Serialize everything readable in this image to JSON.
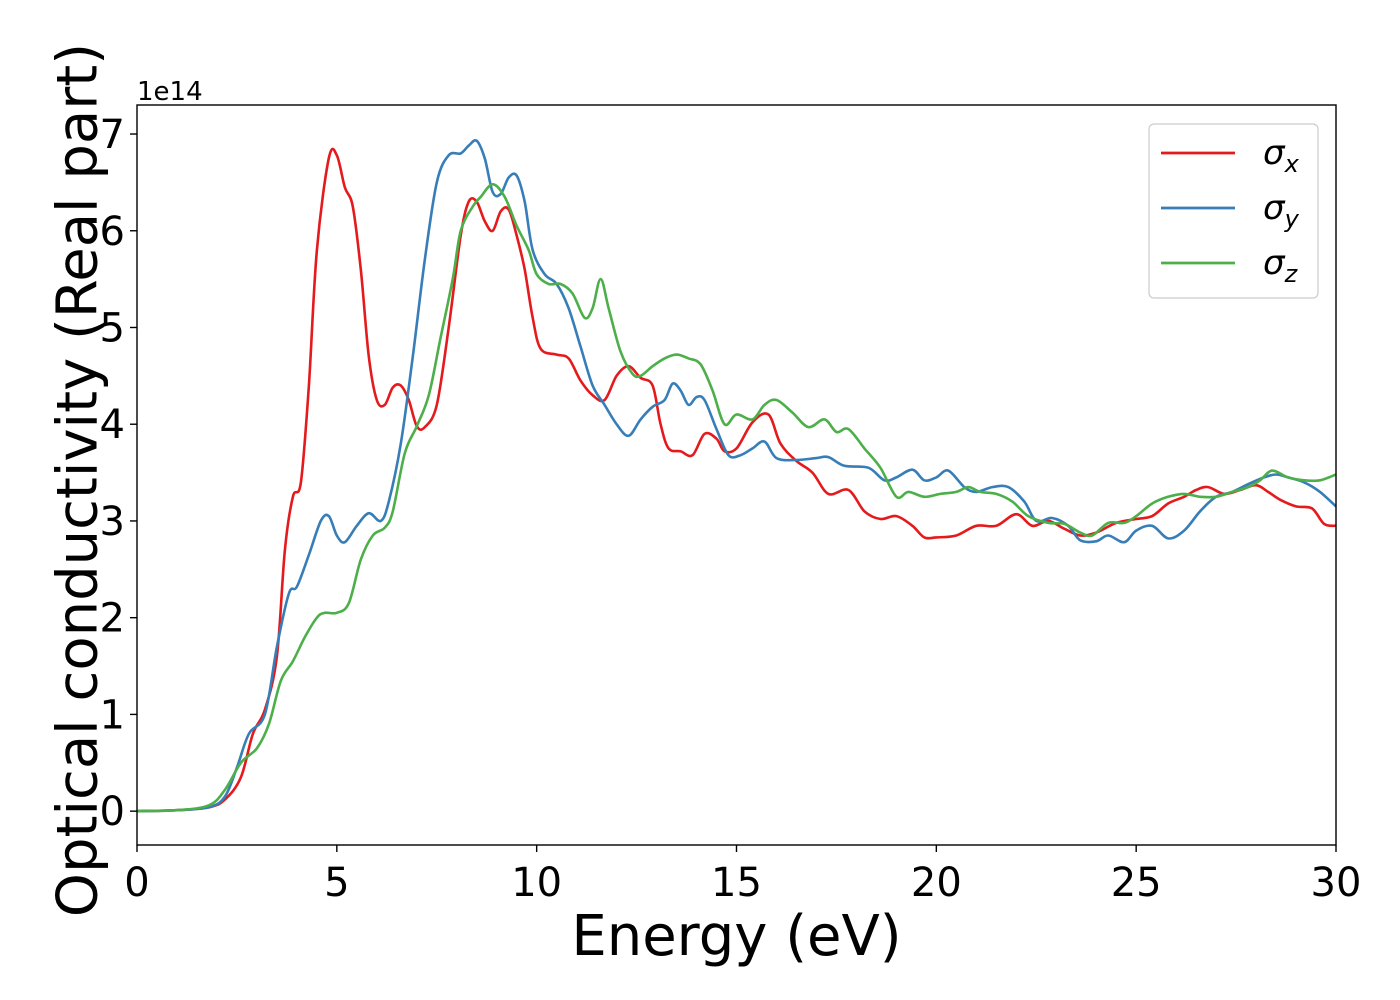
{
  "chart_data": {
    "type": "line",
    "title": "",
    "xlabel": "Energy (eV)",
    "ylabel": "Optical conductivity (Real part)",
    "y_offset_text": "1e14",
    "y_scale_factor": 100000000000000.0,
    "xlim": [
      0,
      30
    ],
    "ylim": [
      -0.35,
      7.3
    ],
    "xticks": [
      0,
      5,
      10,
      15,
      20,
      25,
      30
    ],
    "xtick_labels": [
      "0",
      "5",
      "10",
      "15",
      "20",
      "25",
      "30"
    ],
    "yticks": [
      0,
      1,
      2,
      3,
      4,
      5,
      6,
      7
    ],
    "ytick_labels": [
      "0",
      "1",
      "2",
      "3",
      "4",
      "5",
      "6",
      "7"
    ],
    "grid": false,
    "legend_position": "top-right",
    "series": [
      {
        "name": "σx",
        "name_base": "σ",
        "name_sub": "x",
        "color": "#e41a1c",
        "points": [
          [
            0,
            0
          ],
          [
            1,
            0.01
          ],
          [
            1.8,
            0.04
          ],
          [
            2.2,
            0.12
          ],
          [
            2.6,
            0.35
          ],
          [
            2.9,
            0.8
          ],
          [
            3.2,
            1.05
          ],
          [
            3.5,
            1.6
          ],
          [
            3.7,
            2.7
          ],
          [
            3.9,
            3.25
          ],
          [
            4.1,
            3.4
          ],
          [
            4.3,
            4.4
          ],
          [
            4.5,
            5.8
          ],
          [
            4.8,
            6.75
          ],
          [
            5.0,
            6.78
          ],
          [
            5.2,
            6.45
          ],
          [
            5.4,
            6.25
          ],
          [
            5.6,
            5.6
          ],
          [
            5.8,
            4.7
          ],
          [
            6.0,
            4.25
          ],
          [
            6.2,
            4.2
          ],
          [
            6.4,
            4.38
          ],
          [
            6.6,
            4.4
          ],
          [
            6.8,
            4.25
          ],
          [
            7.0,
            3.98
          ],
          [
            7.2,
            3.97
          ],
          [
            7.5,
            4.2
          ],
          [
            7.8,
            5.0
          ],
          [
            8.1,
            5.95
          ],
          [
            8.3,
            6.3
          ],
          [
            8.5,
            6.3
          ],
          [
            8.7,
            6.1
          ],
          [
            8.9,
            6.0
          ],
          [
            9.1,
            6.2
          ],
          [
            9.3,
            6.22
          ],
          [
            9.5,
            5.95
          ],
          [
            9.7,
            5.6
          ],
          [
            9.9,
            5.1
          ],
          [
            10.1,
            4.78
          ],
          [
            10.5,
            4.72
          ],
          [
            10.8,
            4.68
          ],
          [
            11.1,
            4.45
          ],
          [
            11.4,
            4.3
          ],
          [
            11.7,
            4.25
          ],
          [
            12.0,
            4.5
          ],
          [
            12.3,
            4.6
          ],
          [
            12.6,
            4.48
          ],
          [
            12.9,
            4.4
          ],
          [
            13.1,
            4.0
          ],
          [
            13.3,
            3.75
          ],
          [
            13.6,
            3.72
          ],
          [
            13.9,
            3.68
          ],
          [
            14.2,
            3.9
          ],
          [
            14.5,
            3.85
          ],
          [
            14.7,
            3.72
          ],
          [
            15.0,
            3.75
          ],
          [
            15.4,
            4.02
          ],
          [
            15.8,
            4.1
          ],
          [
            16.1,
            3.8
          ],
          [
            16.5,
            3.62
          ],
          [
            16.9,
            3.5
          ],
          [
            17.3,
            3.28
          ],
          [
            17.8,
            3.32
          ],
          [
            18.2,
            3.1
          ],
          [
            18.6,
            3.02
          ],
          [
            19.0,
            3.05
          ],
          [
            19.4,
            2.95
          ],
          [
            19.7,
            2.83
          ],
          [
            20.0,
            2.83
          ],
          [
            20.5,
            2.85
          ],
          [
            21.0,
            2.95
          ],
          [
            21.5,
            2.95
          ],
          [
            22.0,
            3.07
          ],
          [
            22.4,
            2.95
          ],
          [
            22.8,
            3.0
          ],
          [
            23.2,
            2.92
          ],
          [
            23.6,
            2.85
          ],
          [
            24.0,
            2.88
          ],
          [
            24.5,
            2.98
          ],
          [
            25.0,
            3.02
          ],
          [
            25.4,
            3.05
          ],
          [
            25.8,
            3.18
          ],
          [
            26.2,
            3.25
          ],
          [
            26.5,
            3.32
          ],
          [
            26.8,
            3.35
          ],
          [
            27.2,
            3.28
          ],
          [
            27.6,
            3.32
          ],
          [
            28.0,
            3.37
          ],
          [
            28.3,
            3.3
          ],
          [
            28.6,
            3.22
          ],
          [
            29.0,
            3.15
          ],
          [
            29.4,
            3.13
          ],
          [
            29.7,
            2.97
          ],
          [
            30.0,
            2.95
          ]
        ]
      },
      {
        "name": "σy",
        "name_base": "σ",
        "name_sub": "y",
        "color": "#377eb8",
        "points": [
          [
            0,
            0
          ],
          [
            1,
            0.01
          ],
          [
            1.8,
            0.04
          ],
          [
            2.2,
            0.15
          ],
          [
            2.5,
            0.45
          ],
          [
            2.8,
            0.8
          ],
          [
            3.2,
            1.0
          ],
          [
            3.5,
            1.7
          ],
          [
            3.8,
            2.25
          ],
          [
            4.0,
            2.32
          ],
          [
            4.3,
            2.65
          ],
          [
            4.6,
            3.0
          ],
          [
            4.8,
            3.05
          ],
          [
            5.0,
            2.85
          ],
          [
            5.2,
            2.78
          ],
          [
            5.5,
            2.95
          ],
          [
            5.8,
            3.08
          ],
          [
            6.1,
            3.0
          ],
          [
            6.3,
            3.2
          ],
          [
            6.6,
            3.8
          ],
          [
            6.9,
            4.7
          ],
          [
            7.2,
            5.7
          ],
          [
            7.5,
            6.5
          ],
          [
            7.8,
            6.78
          ],
          [
            8.1,
            6.8
          ],
          [
            8.3,
            6.88
          ],
          [
            8.5,
            6.93
          ],
          [
            8.7,
            6.75
          ],
          [
            8.9,
            6.4
          ],
          [
            9.1,
            6.38
          ],
          [
            9.3,
            6.55
          ],
          [
            9.5,
            6.57
          ],
          [
            9.7,
            6.3
          ],
          [
            9.9,
            5.8
          ],
          [
            10.2,
            5.55
          ],
          [
            10.5,
            5.45
          ],
          [
            10.8,
            5.2
          ],
          [
            11.1,
            4.8
          ],
          [
            11.4,
            4.4
          ],
          [
            11.7,
            4.2
          ],
          [
            12.0,
            4.0
          ],
          [
            12.3,
            3.88
          ],
          [
            12.6,
            4.05
          ],
          [
            12.9,
            4.18
          ],
          [
            13.2,
            4.25
          ],
          [
            13.4,
            4.42
          ],
          [
            13.6,
            4.35
          ],
          [
            13.8,
            4.2
          ],
          [
            14.0,
            4.28
          ],
          [
            14.2,
            4.25
          ],
          [
            14.5,
            3.95
          ],
          [
            14.8,
            3.68
          ],
          [
            15.1,
            3.68
          ],
          [
            15.4,
            3.75
          ],
          [
            15.7,
            3.82
          ],
          [
            16.0,
            3.65
          ],
          [
            16.5,
            3.63
          ],
          [
            17.0,
            3.65
          ],
          [
            17.3,
            3.66
          ],
          [
            17.7,
            3.57
          ],
          [
            18.3,
            3.55
          ],
          [
            18.7,
            3.42
          ],
          [
            19.0,
            3.45
          ],
          [
            19.4,
            3.53
          ],
          [
            19.7,
            3.42
          ],
          [
            20.0,
            3.45
          ],
          [
            20.3,
            3.52
          ],
          [
            20.7,
            3.35
          ],
          [
            21.0,
            3.3
          ],
          [
            21.4,
            3.35
          ],
          [
            21.8,
            3.35
          ],
          [
            22.2,
            3.2
          ],
          [
            22.5,
            3.0
          ],
          [
            22.9,
            3.03
          ],
          [
            23.3,
            2.95
          ],
          [
            23.6,
            2.8
          ],
          [
            24.0,
            2.79
          ],
          [
            24.3,
            2.85
          ],
          [
            24.7,
            2.78
          ],
          [
            25.0,
            2.9
          ],
          [
            25.4,
            2.95
          ],
          [
            25.8,
            2.82
          ],
          [
            26.2,
            2.9
          ],
          [
            26.6,
            3.1
          ],
          [
            27.0,
            3.25
          ],
          [
            27.4,
            3.3
          ],
          [
            27.8,
            3.38
          ],
          [
            28.2,
            3.45
          ],
          [
            28.5,
            3.48
          ],
          [
            28.8,
            3.45
          ],
          [
            29.2,
            3.4
          ],
          [
            29.6,
            3.3
          ],
          [
            30.0,
            3.15
          ]
        ]
      },
      {
        "name": "σz",
        "name_base": "σ",
        "name_sub": "z",
        "color": "#4daf4a",
        "points": [
          [
            0,
            0
          ],
          [
            1,
            0.01
          ],
          [
            1.8,
            0.06
          ],
          [
            2.2,
            0.22
          ],
          [
            2.6,
            0.5
          ],
          [
            3.0,
            0.65
          ],
          [
            3.3,
            0.9
          ],
          [
            3.6,
            1.35
          ],
          [
            3.9,
            1.55
          ],
          [
            4.2,
            1.8
          ],
          [
            4.5,
            2.0
          ],
          [
            4.7,
            2.05
          ],
          [
            5.0,
            2.05
          ],
          [
            5.3,
            2.15
          ],
          [
            5.6,
            2.6
          ],
          [
            5.9,
            2.85
          ],
          [
            6.2,
            2.93
          ],
          [
            6.4,
            3.1
          ],
          [
            6.7,
            3.7
          ],
          [
            7.0,
            3.98
          ],
          [
            7.3,
            4.3
          ],
          [
            7.6,
            4.9
          ],
          [
            7.9,
            5.5
          ],
          [
            8.1,
            6.0
          ],
          [
            8.4,
            6.25
          ],
          [
            8.6,
            6.35
          ],
          [
            8.9,
            6.48
          ],
          [
            9.2,
            6.35
          ],
          [
            9.5,
            6.05
          ],
          [
            9.8,
            5.8
          ],
          [
            10.0,
            5.55
          ],
          [
            10.3,
            5.45
          ],
          [
            10.6,
            5.45
          ],
          [
            10.9,
            5.35
          ],
          [
            11.2,
            5.1
          ],
          [
            11.4,
            5.2
          ],
          [
            11.6,
            5.5
          ],
          [
            11.8,
            5.2
          ],
          [
            12.1,
            4.75
          ],
          [
            12.4,
            4.52
          ],
          [
            12.6,
            4.5
          ],
          [
            12.9,
            4.6
          ],
          [
            13.2,
            4.68
          ],
          [
            13.5,
            4.72
          ],
          [
            13.8,
            4.68
          ],
          [
            14.1,
            4.62
          ],
          [
            14.4,
            4.35
          ],
          [
            14.7,
            4.0
          ],
          [
            15.0,
            4.1
          ],
          [
            15.4,
            4.05
          ],
          [
            15.7,
            4.2
          ],
          [
            16.0,
            4.25
          ],
          [
            16.4,
            4.12
          ],
          [
            16.8,
            3.97
          ],
          [
            17.2,
            4.05
          ],
          [
            17.5,
            3.92
          ],
          [
            17.8,
            3.95
          ],
          [
            18.2,
            3.75
          ],
          [
            18.6,
            3.55
          ],
          [
            19.0,
            3.25
          ],
          [
            19.3,
            3.3
          ],
          [
            19.7,
            3.25
          ],
          [
            20.1,
            3.28
          ],
          [
            20.5,
            3.3
          ],
          [
            20.8,
            3.35
          ],
          [
            21.1,
            3.3
          ],
          [
            21.5,
            3.28
          ],
          [
            21.9,
            3.2
          ],
          [
            22.3,
            3.05
          ],
          [
            22.8,
            2.98
          ],
          [
            23.2,
            2.97
          ],
          [
            23.6,
            2.88
          ],
          [
            23.9,
            2.85
          ],
          [
            24.3,
            2.98
          ],
          [
            24.7,
            2.98
          ],
          [
            25.0,
            3.05
          ],
          [
            25.4,
            3.18
          ],
          [
            25.8,
            3.25
          ],
          [
            26.2,
            3.28
          ],
          [
            26.6,
            3.25
          ],
          [
            27.0,
            3.25
          ],
          [
            27.4,
            3.3
          ],
          [
            27.8,
            3.35
          ],
          [
            28.1,
            3.42
          ],
          [
            28.4,
            3.52
          ],
          [
            28.8,
            3.45
          ],
          [
            29.2,
            3.42
          ],
          [
            29.6,
            3.42
          ],
          [
            30.0,
            3.48
          ]
        ]
      }
    ]
  }
}
